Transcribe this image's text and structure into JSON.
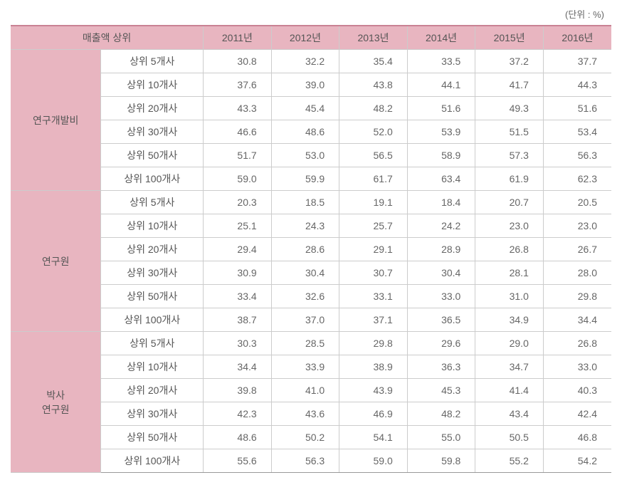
{
  "unit_label": "(단위 : %)",
  "header": {
    "merged": "매출액 상위",
    "years": [
      "2011년",
      "2012년",
      "2013년",
      "2014년",
      "2015년",
      "2016년"
    ]
  },
  "groups": [
    {
      "label": "연구개발비",
      "rows": [
        {
          "sub": "상위 5개사",
          "values": [
            "30.8",
            "32.2",
            "35.4",
            "33.5",
            "37.2",
            "37.7"
          ]
        },
        {
          "sub": "상위 10개사",
          "values": [
            "37.6",
            "39.0",
            "43.8",
            "44.1",
            "41.7",
            "44.3"
          ]
        },
        {
          "sub": "상위 20개사",
          "values": [
            "43.3",
            "45.4",
            "48.2",
            "51.6",
            "49.3",
            "51.6"
          ]
        },
        {
          "sub": "상위 30개사",
          "values": [
            "46.6",
            "48.6",
            "52.0",
            "53.9",
            "51.5",
            "53.4"
          ]
        },
        {
          "sub": "상위 50개사",
          "values": [
            "51.7",
            "53.0",
            "56.5",
            "58.9",
            "57.3",
            "56.3"
          ]
        },
        {
          "sub": "상위 100개사",
          "values": [
            "59.0",
            "59.9",
            "61.7",
            "63.4",
            "61.9",
            "62.3"
          ]
        }
      ]
    },
    {
      "label": "연구원",
      "rows": [
        {
          "sub": "상위 5개사",
          "values": [
            "20.3",
            "18.5",
            "19.1",
            "18.4",
            "20.7",
            "20.5"
          ]
        },
        {
          "sub": "상위 10개사",
          "values": [
            "25.1",
            "24.3",
            "25.7",
            "24.2",
            "23.0",
            "23.0"
          ]
        },
        {
          "sub": "상위 20개사",
          "values": [
            "29.4",
            "28.6",
            "29.1",
            "28.9",
            "26.8",
            "26.7"
          ]
        },
        {
          "sub": "상위 30개사",
          "values": [
            "30.9",
            "30.4",
            "30.7",
            "30.4",
            "28.1",
            "28.0"
          ]
        },
        {
          "sub": "상위 50개사",
          "values": [
            "33.4",
            "32.6",
            "33.1",
            "33.0",
            "31.0",
            "29.8"
          ]
        },
        {
          "sub": "상위 100개사",
          "values": [
            "38.7",
            "37.0",
            "37.1",
            "36.5",
            "34.9",
            "34.4"
          ]
        }
      ]
    },
    {
      "label": "박사\n연구원",
      "rows": [
        {
          "sub": "상위 5개사",
          "values": [
            "30.3",
            "28.5",
            "29.8",
            "29.6",
            "29.0",
            "26.8"
          ]
        },
        {
          "sub": "상위 10개사",
          "values": [
            "34.4",
            "33.9",
            "38.9",
            "36.3",
            "34.7",
            "33.0"
          ]
        },
        {
          "sub": "상위 20개사",
          "values": [
            "39.8",
            "41.0",
            "43.9",
            "45.3",
            "41.4",
            "40.3"
          ]
        },
        {
          "sub": "상위 30개사",
          "values": [
            "42.3",
            "43.6",
            "46.9",
            "48.2",
            "43.4",
            "42.4"
          ]
        },
        {
          "sub": "상위 50개사",
          "values": [
            "48.6",
            "50.2",
            "54.1",
            "55.0",
            "50.5",
            "46.8"
          ]
        },
        {
          "sub": "상위 100개사",
          "values": [
            "55.6",
            "56.3",
            "59.0",
            "59.8",
            "55.2",
            "54.2"
          ]
        }
      ]
    }
  ],
  "colors": {
    "header_bg": "#e8b5c0",
    "border": "#cccccc",
    "top_border": "#c98294",
    "text": "#555555",
    "value_text": "#666666"
  }
}
